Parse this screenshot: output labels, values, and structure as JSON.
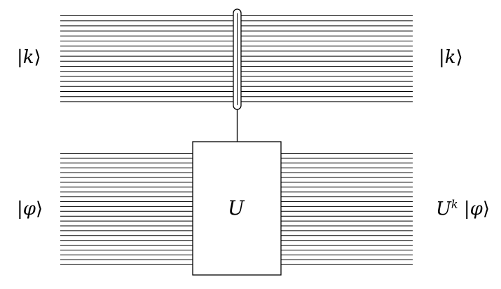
{
  "diagram": {
    "top_register": {
      "input_label": {
        "prefix": "|",
        "var": "k",
        "suffix": "⟩"
      },
      "output_label": {
        "prefix": "|",
        "var": "k",
        "suffix": "⟩"
      }
    },
    "bottom_register": {
      "input_label": {
        "prefix": "|",
        "var": "φ",
        "suffix": "⟩"
      },
      "output_label": {
        "base": "U",
        "exp": "k",
        "prefix": " |",
        "var": "φ",
        "suffix": "⟩"
      }
    },
    "gate": {
      "label": "U"
    },
    "colors": {
      "stroke": "#000000",
      "background": "#ffffff"
    }
  }
}
